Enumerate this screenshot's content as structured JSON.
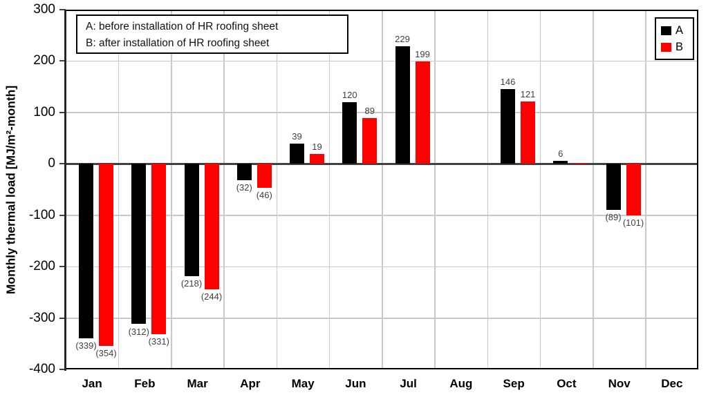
{
  "chart": {
    "y_axis_title": "Monthly thermal load [MJ/m²-month]",
    "annotation_line1": "A: before installation of HR roofing sheet",
    "annotation_line2": "B: after installation of HR roofing sheet"
  },
  "chart_data": {
    "type": "bar",
    "title": "",
    "xlabel": "",
    "ylabel": "Monthly thermal load [MJ/m²-month]",
    "ylim": [
      -400,
      300
    ],
    "yticks": [
      300,
      200,
      100,
      0,
      -100,
      -200,
      -300,
      -400
    ],
    "grid": true,
    "legend_position": "top-right",
    "negative_label_style": "parentheses show absolute value of negative bars",
    "categories": [
      "Jan",
      "Feb",
      "Mar",
      "Apr",
      "May",
      "Jun",
      "Jul",
      "Aug",
      "Sep",
      "Oct",
      "Nov",
      "Dec"
    ],
    "series": [
      {
        "name": "A",
        "color": "#000000",
        "values": [
          -339,
          -312,
          -218,
          -32,
          39,
          120,
          229,
          null,
          146,
          6,
          -89,
          null
        ],
        "labels": [
          "(339)",
          "(312)",
          "(218)",
          "(32)",
          "39",
          "120",
          "229",
          "",
          "146",
          "6",
          "(89)",
          ""
        ]
      },
      {
        "name": "B",
        "color": "#ff0000",
        "values": [
          -354,
          -331,
          -244,
          -46,
          19,
          89,
          199,
          null,
          121,
          2,
          -101,
          null
        ],
        "labels": [
          "(354)",
          "(331)",
          "(244)",
          "(46)",
          "19",
          "89",
          "199",
          "",
          "121",
          "",
          "(101)",
          ""
        ]
      }
    ]
  },
  "colors": {
    "background": "#ffffff",
    "plot_border": "#000000",
    "gridline": "#c9c9c9",
    "zero_line": "#404040",
    "y_axis_line": "#262626",
    "tick_mark": "#404040",
    "data_label": "#404040",
    "series_a": "#000000",
    "series_b": "#ff0000"
  }
}
